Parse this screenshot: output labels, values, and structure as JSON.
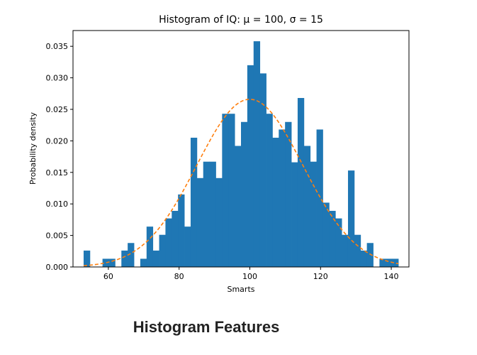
{
  "caption": "Histogram Features",
  "chart_data": {
    "type": "bar",
    "title": "Histogram of IQ: μ = 100, σ = 15",
    "xlabel": "Smarts",
    "ylabel": "Probability density",
    "xlim": [
      50,
      145
    ],
    "ylim": [
      0,
      0.0375
    ],
    "xticks": [
      "60",
      "80",
      "100",
      "120",
      "140"
    ],
    "yticks": [
      "0.000",
      "0.005",
      "0.010",
      "0.015",
      "0.020",
      "0.025",
      "0.030",
      "0.035"
    ],
    "grid": false,
    "bin_start": 53.0,
    "bin_width": 1.78,
    "values": [
      0.0026,
      0.0,
      0.0,
      0.0013,
      0.0013,
      0.0,
      0.0026,
      0.0038,
      0.0,
      0.0013,
      0.0064,
      0.0026,
      0.0051,
      0.0077,
      0.0089,
      0.0115,
      0.0064,
      0.0205,
      0.0141,
      0.0167,
      0.0167,
      0.0141,
      0.0243,
      0.0243,
      0.0192,
      0.023,
      0.032,
      0.0358,
      0.0307,
      0.0243,
      0.0205,
      0.0218,
      0.023,
      0.0166,
      0.0268,
      0.0192,
      0.0167,
      0.0218,
      0.0102,
      0.0089,
      0.0077,
      0.0051,
      0.0153,
      0.0051,
      0.0026,
      0.0038,
      0.0,
      0.0013,
      0.0013,
      0.0013
    ],
    "curve": {
      "type": "normal_pdf",
      "mu": 100,
      "sigma": 15,
      "x_range": [
        53,
        142
      ]
    },
    "colors": {
      "bars": "#1f77b4",
      "curve": "#ff7f0e"
    }
  }
}
